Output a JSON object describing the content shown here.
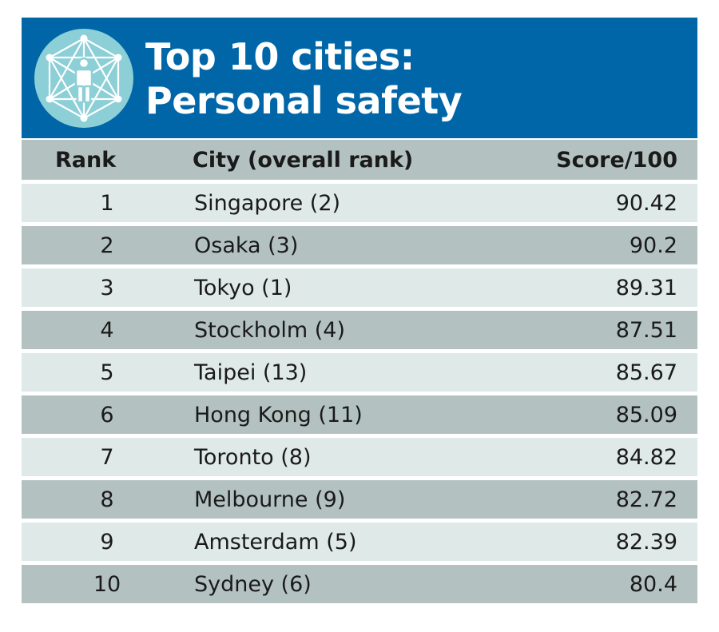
{
  "header": {
    "title_line1": "Top 10 cities:",
    "title_line2": "Personal safety",
    "icon": "person-network-icon",
    "colors": {
      "header_bg": "#0066a8",
      "icon_circle": "#8ccfd6",
      "row_light": "#dfe9e7",
      "row_dark": "#b3c2c0"
    }
  },
  "table": {
    "columns": [
      "Rank",
      "City (overall rank)",
      "Score/100"
    ],
    "rows": [
      {
        "rank": "1",
        "city": "Singapore (2)",
        "score": "90.42"
      },
      {
        "rank": "2",
        "city": "Osaka (3)",
        "score": "90.2"
      },
      {
        "rank": "3",
        "city": "Tokyo (1)",
        "score": "89.31"
      },
      {
        "rank": "4",
        "city": "Stockholm (4)",
        "score": "87.51"
      },
      {
        "rank": "5",
        "city": "Taipei (13)",
        "score": "85.67"
      },
      {
        "rank": "6",
        "city": "Hong Kong (11)",
        "score": "85.09"
      },
      {
        "rank": "7",
        "city": "Toronto (8)",
        "score": "84.82"
      },
      {
        "rank": "8",
        "city": "Melbourne (9)",
        "score": "82.72"
      },
      {
        "rank": "9",
        "city": "Amsterdam (5)",
        "score": "82.39"
      },
      {
        "rank": "10",
        "city": "Sydney (6)",
        "score": "80.4"
      }
    ]
  },
  "chart_data": {
    "type": "table",
    "title": "Top 10 cities: Personal safety",
    "columns": [
      "Rank",
      "City (overall rank)",
      "Score/100"
    ],
    "rows": [
      [
        1,
        "Singapore (2)",
        90.42
      ],
      [
        2,
        "Osaka (3)",
        90.2
      ],
      [
        3,
        "Tokyo (1)",
        89.31
      ],
      [
        4,
        "Stockholm (4)",
        87.51
      ],
      [
        5,
        "Taipei (13)",
        85.67
      ],
      [
        6,
        "Hong Kong (11)",
        85.09
      ],
      [
        7,
        "Toronto (8)",
        84.82
      ],
      [
        8,
        "Melbourne (9)",
        82.72
      ],
      [
        9,
        "Amsterdam (5)",
        82.39
      ],
      [
        10,
        "Sydney (6)",
        80.4
      ]
    ]
  }
}
